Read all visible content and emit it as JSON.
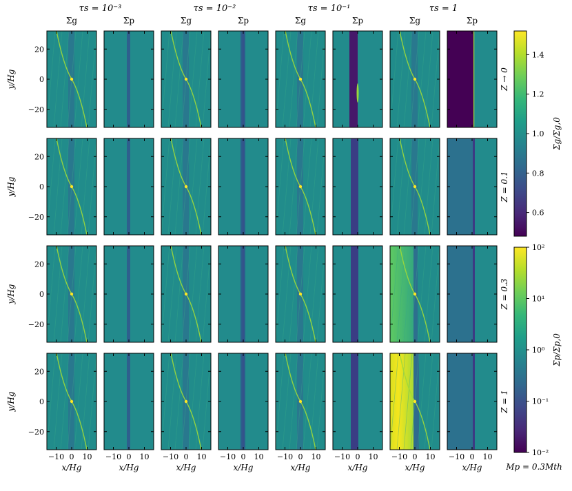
{
  "chart_data": {
    "type": "heatmap",
    "title": "",
    "grid": {
      "rows": [
        "Z → 0",
        "Z = 0.1",
        "Z = 0.3",
        "Z = 1"
      ],
      "columns": [
        {
          "tau": "τs = 10⁻³",
          "panels": [
            "Σg",
            "Σp"
          ]
        },
        {
          "tau": "τs = 10⁻²",
          "panels": [
            "Σg",
            "Σp"
          ]
        },
        {
          "tau": "τs = 10⁻¹",
          "panels": [
            "Σg",
            "Σp"
          ]
        },
        {
          "tau": "τs = 1",
          "panels": [
            "Σg",
            "Σp"
          ]
        }
      ]
    },
    "xlabel": "x/Hg",
    "ylabel": "y/Hg",
    "xlim": [
      -16,
      16
    ],
    "ylim": [
      -32,
      32
    ],
    "xticks": [
      -10,
      0,
      10
    ],
    "xtick_labels": [
      "−10",
      "0",
      "10"
    ],
    "yticks": [
      20,
      0,
      -20
    ],
    "ytick_labels": [
      "20",
      "0",
      "−20"
    ],
    "colorbars": [
      {
        "label": "Σg/Σg,0",
        "scale": "linear",
        "range": [
          0.48,
          1.52
        ],
        "ticks": [
          1.4,
          1.2,
          1.0,
          0.8,
          0.6
        ],
        "tick_labels": [
          "1.4",
          "1.2",
          "1.0",
          "0.8",
          "0.6"
        ],
        "colormap": "viridis"
      },
      {
        "label": "Σp/Σp,0",
        "scale": "log",
        "range": [
          0.01,
          100
        ],
        "ticks": [
          100,
          10,
          1,
          0.1,
          0.01
        ],
        "tick_labels": [
          "10²",
          "10¹",
          "10⁰",
          "10⁻¹",
          "10⁻²"
        ],
        "colormap": "viridis"
      }
    ],
    "annotation": "Mp = 0.3Mth",
    "notes": "Gas panels: gap band near x≈0 with spiral wakes through planet at (0,0); dust panels: ring/gap structure, strongest depletion for τs = 1."
  },
  "palette": {
    "viridis": [
      "#440154",
      "#482878",
      "#3e4989",
      "#31688e",
      "#26828e",
      "#1f9e89",
      "#35b779",
      "#6ece58",
      "#b5de2b",
      "#fde725"
    ],
    "base_gas": "#218c8b",
    "base_dust": "#228b8c"
  }
}
